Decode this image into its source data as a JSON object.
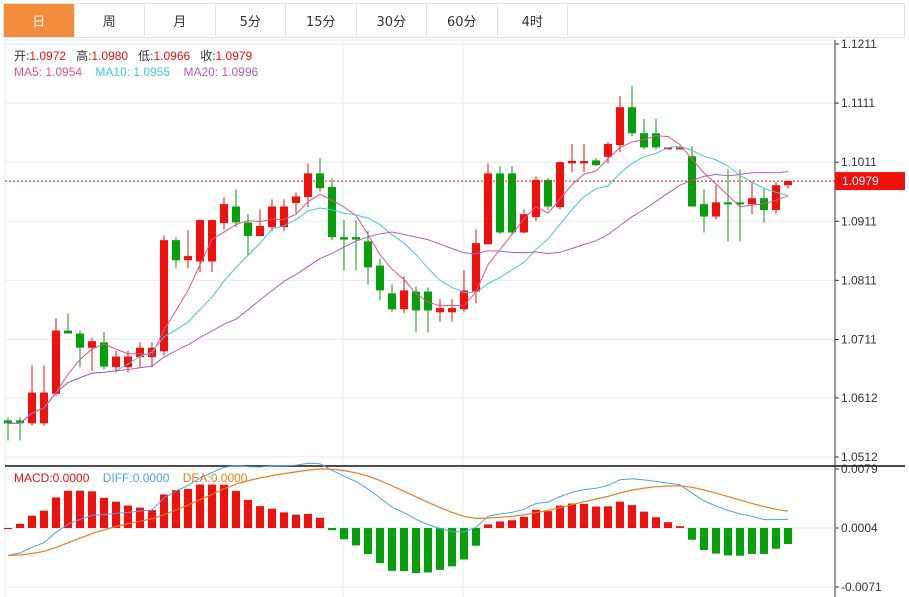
{
  "tabs": [
    {
      "label": "日",
      "active": true
    },
    {
      "label": "周"
    },
    {
      "label": "月"
    },
    {
      "label": "5分"
    },
    {
      "label": "15分"
    },
    {
      "label": "30分"
    },
    {
      "label": "60分"
    },
    {
      "label": "4时"
    }
  ],
  "ohlc_legend": {
    "open_label": "开:",
    "open": "1.0972",
    "high_label": "高:",
    "high": "1.0980",
    "low_label": "低:",
    "low": "1.0966",
    "close_label": "收:",
    "close": "1.0979"
  },
  "ma_legend": {
    "ma5": "MA5: 1.0954",
    "ma10": "MA10: 1.0955",
    "ma20": "MA20: 1.0996"
  },
  "macd_legend": {
    "macd": "MACD:0.0000",
    "diff": "DIFF:0.0000",
    "dea": "DEA:0.0000"
  },
  "colors": {
    "up": "#f0100c",
    "down": "#06a10a",
    "ma5": "#ee4f86",
    "ma10": "#3fc9dd",
    "ma20": "#b55ac6",
    "diff": "#4aa3ee",
    "dea": "#f37a1f",
    "active_tab": "#f38b3c",
    "grid": "#e3ebf1"
  },
  "chart_data": {
    "type": "candlestick",
    "price_axis_ticks": [
      "1.1211",
      "1.1111",
      "1.1011",
      "1.0911",
      "1.0811",
      "1.0711",
      "1.0612",
      "1.0512"
    ],
    "price_range": [
      1.0512,
      1.1211
    ],
    "current_price": "1.0979",
    "macd_axis_ticks": [
      "0.0079",
      "0.0004",
      "-0.0071"
    ],
    "macd_range": [
      -0.0071,
      0.0079
    ],
    "ohlc": [
      [
        1.0574,
        1.0579,
        1.054,
        1.0569
      ],
      [
        1.0574,
        1.0579,
        1.054,
        1.0569
      ],
      [
        1.0569,
        1.0667,
        1.0565,
        1.0621
      ],
      [
        1.0569,
        1.0667,
        1.0565,
        1.0621
      ],
      [
        1.0619,
        1.0747,
        1.0615,
        1.0726
      ],
      [
        1.0726,
        1.0755,
        1.0721,
        1.0721
      ],
      [
        1.0721,
        1.0726,
        1.0664,
        1.0697
      ],
      [
        1.0697,
        1.0714,
        1.0658,
        1.0708
      ],
      [
        1.0706,
        1.0724,
        1.066,
        1.0665
      ],
      [
        1.0664,
        1.0692,
        1.0655,
        1.0682
      ],
      [
        1.0664,
        1.0692,
        1.0655,
        1.0682
      ],
      [
        1.0681,
        1.0706,
        1.0664,
        1.0697
      ],
      [
        1.0681,
        1.0706,
        1.0664,
        1.0697
      ],
      [
        1.0691,
        1.0887,
        1.0684,
        1.0879
      ],
      [
        1.0879,
        1.0884,
        1.0831,
        1.0845
      ],
      [
        1.0845,
        1.0896,
        1.0831,
        1.0852
      ],
      [
        1.0843,
        1.0914,
        1.0825,
        1.0913
      ],
      [
        1.0843,
        1.0914,
        1.0825,
        1.0913
      ],
      [
        1.0908,
        1.0952,
        1.0897,
        1.094
      ],
      [
        1.0936,
        1.0965,
        1.0901,
        1.0909
      ],
      [
        1.0909,
        1.0923,
        1.0853,
        1.0886
      ],
      [
        1.0886,
        1.0931,
        1.0886,
        1.0903
      ],
      [
        1.0901,
        1.0948,
        1.0894,
        1.0936
      ],
      [
        1.0901,
        1.0948,
        1.0894,
        1.0936
      ],
      [
        1.0942,
        1.096,
        1.0925,
        1.0953
      ],
      [
        1.0952,
        1.1009,
        1.0935,
        1.0992
      ],
      [
        1.0992,
        1.1018,
        1.096,
        1.0967
      ],
      [
        1.0969,
        1.0984,
        1.0879,
        1.0884
      ],
      [
        1.0884,
        1.0913,
        1.0828,
        1.088
      ],
      [
        1.0884,
        1.0913,
        1.0828,
        1.088
      ],
      [
        1.0877,
        1.0894,
        1.0804,
        1.0833
      ],
      [
        1.0836,
        1.0848,
        1.0777,
        1.0794
      ],
      [
        1.0789,
        1.0804,
        1.0758,
        1.0762
      ],
      [
        1.0762,
        1.0818,
        1.0755,
        1.0794
      ],
      [
        1.0792,
        1.0801,
        1.0723,
        1.076
      ],
      [
        1.0792,
        1.0799,
        1.0723,
        1.076
      ],
      [
        1.0757,
        1.0779,
        1.0741,
        1.0764
      ],
      [
        1.0757,
        1.0779,
        1.0741,
        1.0764
      ],
      [
        1.0762,
        1.0828,
        1.0758,
        1.0794
      ],
      [
        1.0792,
        1.0897,
        1.0772,
        1.0874
      ],
      [
        1.0872,
        1.1009,
        1.0872,
        1.0992
      ],
      [
        1.0992,
        1.1004,
        1.0889,
        1.0892
      ],
      [
        1.0992,
        1.1004,
        1.0889,
        1.0892
      ],
      [
        1.0892,
        1.0931,
        1.0891,
        1.0923
      ],
      [
        1.0918,
        1.0987,
        1.0911,
        1.0981
      ],
      [
        1.0981,
        1.0984,
        1.093,
        1.0936
      ],
      [
        1.0935,
        1.1013,
        1.0931,
        1.1011
      ],
      [
        1.1009,
        1.1042,
        1.0994,
        1.1013
      ],
      [
        1.1009,
        1.1042,
        1.0994,
        1.1013
      ],
      [
        1.1014,
        1.1018,
        1.1004,
        1.1006
      ],
      [
        1.102,
        1.1045,
        1.1009,
        1.1042
      ],
      [
        1.104,
        1.1123,
        1.1028,
        1.1104
      ],
      [
        1.1104,
        1.114,
        1.1055,
        1.106
      ],
      [
        1.106,
        1.1084,
        1.1033,
        1.1036
      ],
      [
        1.106,
        1.1084,
        1.1033,
        1.1036
      ],
      [
        1.1035,
        1.1036,
        1.1035,
        1.1036
      ],
      [
        1.1035,
        1.1036,
        1.1035,
        1.1036
      ],
      [
        1.1021,
        1.1038,
        1.0936,
        1.0936
      ],
      [
        1.094,
        1.0965,
        1.0892,
        1.0919
      ],
      [
        1.0919,
        1.0972,
        1.0914,
        1.0943
      ],
      [
        1.0943,
        1.0999,
        1.0877,
        1.094
      ],
      [
        1.0943,
        1.0999,
        1.0877,
        1.094
      ],
      [
        1.094,
        1.0979,
        1.0923,
        1.095
      ],
      [
        1.095,
        1.0967,
        1.0909,
        1.093
      ],
      [
        1.093,
        1.0977,
        1.0923,
        1.0972
      ],
      [
        1.0972,
        1.098,
        1.0966,
        1.0979
      ]
    ]
  }
}
